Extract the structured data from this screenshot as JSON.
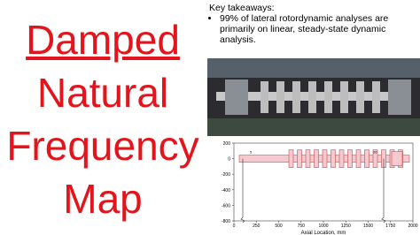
{
  "title": {
    "lines": [
      "Damped",
      "Natural",
      "Frequency",
      "Map"
    ]
  },
  "takeaways": {
    "heading": "Key takeaways:",
    "bullets": [
      "99% of lateral rotordynamic analyses are primarily on linear, steady-state dynamic analysis."
    ]
  },
  "figure": {
    "yticks": [
      200,
      0,
      -200,
      -400,
      -600,
      -800
    ],
    "xticks": [
      0,
      250,
      500,
      750,
      1000,
      1250,
      1500,
      1750,
      2000
    ],
    "xlabel": "Axial Location, mm",
    "node_labels": [
      "5",
      "20"
    ]
  }
}
